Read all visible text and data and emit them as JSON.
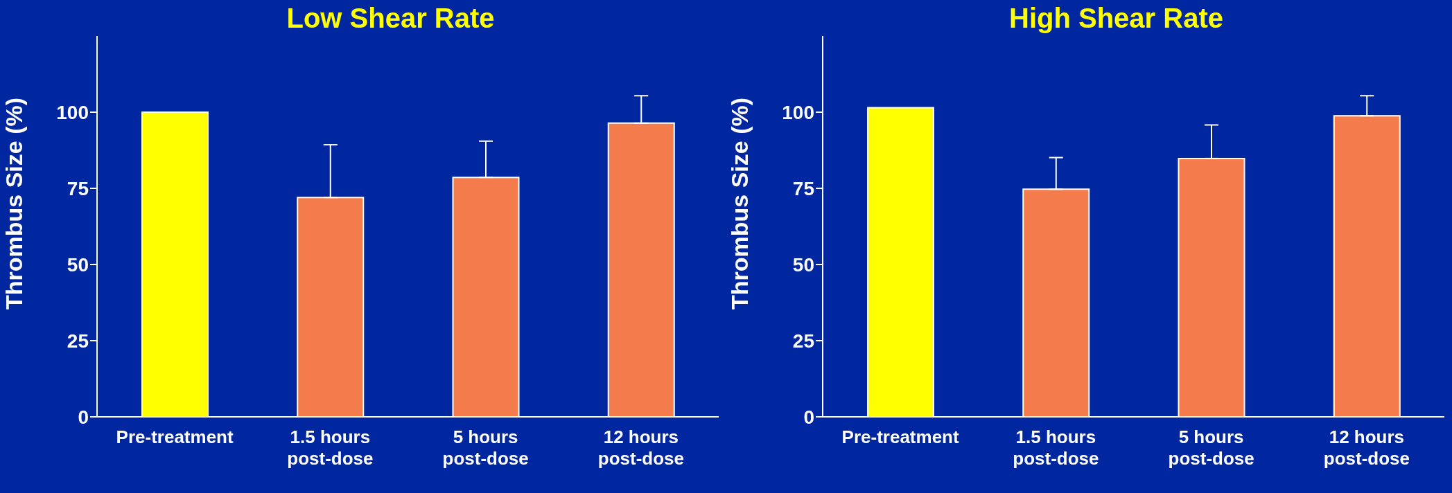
{
  "chart_data": [
    {
      "type": "bar",
      "title": "Low Shear Rate",
      "ylabel": "Thrombus Size (%)",
      "categories": [
        "Pre-treatment",
        "1.5 hours post-dose",
        "5 hours post-dose",
        "12 hours post-dose"
      ],
      "values": [
        100,
        72,
        78.6,
        96.4
      ],
      "colors": [
        "#ffff00",
        "#f47c4c",
        "#f47c4c",
        "#f47c4c"
      ],
      "errors": [
        null,
        [
          72,
          89.3
        ],
        [
          78.6,
          90.5
        ],
        [
          96.4,
          105.4
        ]
      ],
      "ylim": [
        0,
        125
      ],
      "yticks": [
        0,
        25,
        50,
        75,
        100
      ],
      "grid": false,
      "legend": false
    },
    {
      "type": "bar",
      "title": "High Shear Rate",
      "ylabel": "Thrombus Size (%)",
      "categories": [
        "Pre-treatment",
        "1.5 hours post-dose",
        "5 hours post-dose",
        "12 hours post-dose"
      ],
      "values": [
        101.5,
        74.7,
        84.8,
        98.8
      ],
      "colors": [
        "#ffff00",
        "#f47c4c",
        "#f47c4c",
        "#f47c4c"
      ],
      "errors": [
        null,
        [
          74.7,
          85.1
        ],
        [
          84.8,
          95.8
        ],
        [
          98.8,
          105.4
        ]
      ],
      "ylim": [
        0,
        125
      ],
      "yticks": [
        0,
        25,
        50,
        75,
        100
      ],
      "grid": false,
      "legend": false
    }
  ]
}
